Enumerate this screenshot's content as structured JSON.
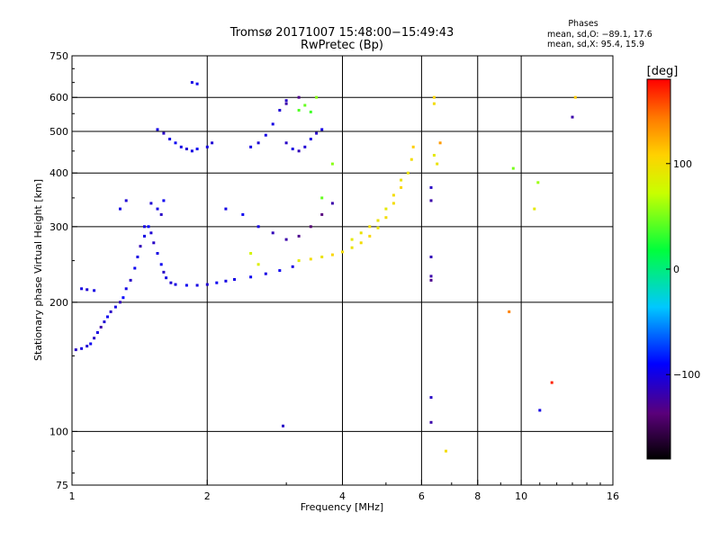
{
  "chart_data": {
    "type": "scatter",
    "title": "Tromsø 20171007 15:48:00−15:49:43",
    "subtitle": "RwPretec (Bp)",
    "xlabel": "Frequency [MHz]",
    "ylabel": "Stationary phase Virtual Height [km]",
    "xscale": "log",
    "yscale": "log",
    "xlim": [
      1,
      16
    ],
    "ylim": [
      75,
      750
    ],
    "xticks": [
      1,
      2,
      4,
      6,
      8,
      10,
      16
    ],
    "xtick_labels": [
      "1",
      "2",
      "4",
      "6",
      "8",
      "10",
      "16"
    ],
    "xgrid": [
      2,
      4,
      6,
      8,
      10
    ],
    "yticks": [
      75,
      100,
      200,
      300,
      400,
      500,
      600,
      750
    ],
    "ytick_labels": [
      "75",
      "100",
      "200",
      "300",
      "400",
      "500",
      "600",
      "750"
    ],
    "ygrid": [
      100,
      200,
      300,
      400,
      500,
      600
    ],
    "grid": true,
    "stats": {
      "heading": "Phases",
      "line_o": "mean, sd,O: −89.1, 17.6",
      "line_x": "mean, sd,X:  95.4, 15.9"
    },
    "colorbar": {
      "label": "[deg]",
      "range": [
        -180,
        180
      ],
      "ticks": [
        100,
        0,
        -100
      ],
      "tick_labels": [
        "100",
        "0",
        "−100"
      ],
      "colormap": "rainbow"
    },
    "series": [
      {
        "mode": "O",
        "phase_mean": -89.1,
        "points": [
          [
            1.02,
            155,
            -110
          ],
          [
            1.05,
            156,
            -100
          ],
          [
            1.08,
            158,
            -105
          ],
          [
            1.1,
            160,
            -95
          ],
          [
            1.12,
            165,
            -110
          ],
          [
            1.14,
            170,
            -100
          ],
          [
            1.16,
            175,
            -120
          ],
          [
            1.18,
            180,
            -105
          ],
          [
            1.2,
            185,
            -95
          ],
          [
            1.22,
            190,
            -110
          ],
          [
            1.25,
            195,
            -100
          ],
          [
            1.28,
            200,
            -115
          ],
          [
            1.3,
            205,
            -90
          ],
          [
            1.32,
            215,
            -100
          ],
          [
            1.35,
            225,
            -110
          ],
          [
            1.38,
            240,
            -95
          ],
          [
            1.4,
            255,
            -100
          ],
          [
            1.42,
            270,
            -115
          ],
          [
            1.45,
            285,
            -100
          ],
          [
            1.48,
            300,
            -90
          ],
          [
            1.5,
            290,
            -105
          ],
          [
            1.52,
            275,
            -110
          ],
          [
            1.55,
            260,
            -100
          ],
          [
            1.58,
            245,
            -95
          ],
          [
            1.6,
            235,
            -110
          ],
          [
            1.62,
            228,
            -100
          ],
          [
            1.66,
            222,
            -105
          ],
          [
            1.7,
            220,
            -100
          ],
          [
            1.8,
            219,
            -95
          ],
          [
            1.9,
            219,
            -100
          ],
          [
            2.0,
            220,
            -105
          ],
          [
            2.1,
            222,
            -95
          ],
          [
            2.2,
            224,
            -100
          ],
          [
            2.3,
            226,
            -100
          ],
          [
            2.5,
            229,
            -95
          ],
          [
            2.7,
            233,
            -100
          ],
          [
            2.9,
            237,
            -95
          ],
          [
            3.1,
            242,
            -100
          ],
          [
            1.5,
            340,
            -105
          ],
          [
            1.55,
            330,
            -100
          ],
          [
            1.58,
            320,
            -110
          ],
          [
            1.45,
            300,
            -100
          ],
          [
            1.6,
            345,
            -95
          ],
          [
            1.28,
            330,
            -100
          ],
          [
            1.32,
            345,
            -105
          ],
          [
            1.55,
            505,
            -100
          ],
          [
            1.6,
            495,
            -110
          ],
          [
            1.65,
            480,
            -100
          ],
          [
            1.7,
            470,
            -95
          ],
          [
            1.75,
            460,
            -100
          ],
          [
            1.8,
            455,
            -105
          ],
          [
            1.85,
            450,
            -100
          ],
          [
            1.9,
            455,
            -95
          ],
          [
            2.0,
            460,
            -100
          ],
          [
            2.05,
            470,
            -105
          ],
          [
            1.85,
            650,
            -100
          ],
          [
            1.9,
            645,
            -95
          ],
          [
            2.5,
            460,
            -100
          ],
          [
            2.6,
            470,
            -105
          ],
          [
            2.7,
            490,
            -100
          ],
          [
            2.8,
            520,
            -100
          ],
          [
            2.9,
            560,
            -105
          ],
          [
            3.0,
            590,
            -110
          ],
          [
            2.2,
            330,
            -100
          ],
          [
            2.4,
            320,
            -95
          ],
          [
            2.6,
            300,
            -100
          ],
          [
            2.8,
            290,
            -115
          ],
          [
            3.0,
            280,
            -120
          ],
          [
            3.2,
            285,
            -130
          ],
          [
            3.4,
            300,
            -140
          ],
          [
            3.6,
            320,
            -135
          ],
          [
            3.8,
            340,
            -120
          ],
          [
            3.0,
            470,
            -110
          ],
          [
            3.1,
            455,
            -100
          ],
          [
            3.2,
            450,
            -115
          ],
          [
            3.3,
            460,
            -105
          ],
          [
            3.4,
            480,
            -100
          ],
          [
            3.5,
            495,
            -110
          ],
          [
            3.6,
            505,
            -100
          ],
          [
            3.2,
            600,
            -130
          ],
          [
            3.0,
            580,
            -120
          ],
          [
            6.3,
            370,
            -110
          ],
          [
            6.3,
            345,
            -120
          ],
          [
            6.3,
            255,
            -115
          ],
          [
            6.3,
            230,
            -120
          ],
          [
            6.3,
            225,
            -130
          ],
          [
            6.3,
            120,
            -110
          ],
          [
            6.3,
            105,
            -120
          ],
          [
            2.95,
            103,
            -110
          ],
          [
            11.0,
            112,
            -100
          ],
          [
            13.0,
            540,
            -120
          ],
          [
            1.05,
            215,
            -100
          ],
          [
            1.08,
            214,
            -105
          ],
          [
            1.12,
            213,
            -100
          ]
        ]
      },
      {
        "mode": "X",
        "phase_mean": 95.4,
        "points": [
          [
            3.2,
            250,
            90
          ],
          [
            3.4,
            252,
            100
          ],
          [
            3.6,
            255,
            95
          ],
          [
            3.8,
            258,
            105
          ],
          [
            4.0,
            262,
            100
          ],
          [
            4.2,
            268,
            95
          ],
          [
            4.4,
            275,
            100
          ],
          [
            4.6,
            285,
            105
          ],
          [
            4.8,
            298,
            95
          ],
          [
            5.0,
            315,
            100
          ],
          [
            5.2,
            340,
            100
          ],
          [
            5.4,
            370,
            105
          ],
          [
            5.6,
            400,
            95
          ],
          [
            5.7,
            430,
            100
          ],
          [
            5.75,
            460,
            110
          ],
          [
            4.2,
            280,
            90
          ],
          [
            4.4,
            290,
            95
          ],
          [
            4.6,
            300,
            100
          ],
          [
            4.8,
            310,
            95
          ],
          [
            5.0,
            330,
            90
          ],
          [
            5.2,
            355,
            100
          ],
          [
            5.4,
            385,
            95
          ],
          [
            6.4,
            600,
            105
          ],
          [
            6.4,
            580,
            100
          ],
          [
            6.6,
            470,
            130
          ],
          [
            6.4,
            440,
            90
          ],
          [
            6.5,
            420,
            95
          ],
          [
            6.8,
            90,
            100
          ],
          [
            9.4,
            190,
            140
          ],
          [
            11.7,
            130,
            170
          ],
          [
            13.2,
            600,
            110
          ],
          [
            10.7,
            330,
            90
          ],
          [
            10.9,
            380,
            60
          ],
          [
            9.6,
            410,
            50
          ],
          [
            3.2,
            560,
            40
          ],
          [
            3.4,
            555,
            35
          ],
          [
            3.3,
            575,
            45
          ],
          [
            3.5,
            600,
            55
          ],
          [
            3.6,
            350,
            45
          ],
          [
            3.8,
            420,
            55
          ],
          [
            2.5,
            260,
            80
          ],
          [
            2.6,
            245,
            85
          ]
        ]
      }
    ]
  }
}
